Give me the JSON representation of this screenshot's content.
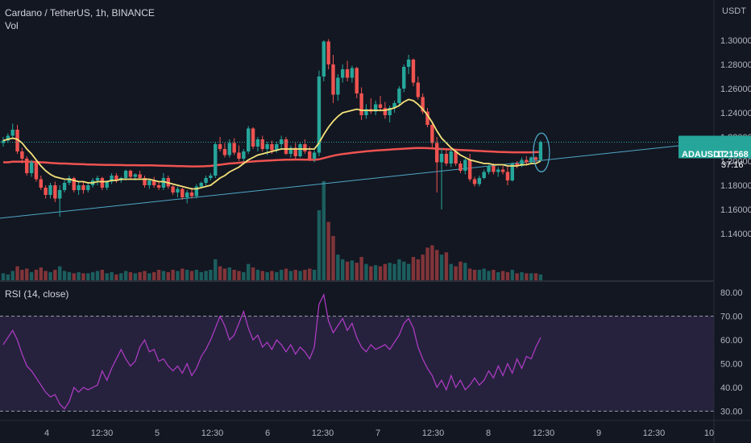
{
  "header": {
    "symbol_line": "Cardano / TetherUS, 1h, BINANCE",
    "volume_label": "Vol",
    "rsi_label": "RSI (14, close)"
  },
  "price_axis": {
    "currency": "USDT",
    "ticks": [
      "1.30000",
      "1.28000",
      "1.26000",
      "1.24000",
      "1.22000",
      "1.20000",
      "1.18000",
      "1.16000",
      "1.14000"
    ],
    "last_price_ticker": "ADAUSDT",
    "last_price": "1.21568",
    "countdown": "37:16"
  },
  "rsi_axis": {
    "ticks": [
      "80.00",
      "70.00",
      "60.00",
      "50.00",
      "40.00",
      "30.00"
    ]
  },
  "time_axis": {
    "ticks": [
      "4",
      "12:30",
      "5",
      "12:30",
      "6",
      "12:30",
      "7",
      "12:30",
      "8",
      "12:30",
      "9",
      "12:30",
      "10"
    ]
  },
  "colors": {
    "background": "#131722",
    "up": "#26a69a",
    "down": "#ef5350",
    "ma_fast": "#f5e27a",
    "ma_slow": "#ef5350",
    "trendline": "#4fa8c7",
    "rsi_line": "#b43cc8",
    "rsi_band": "#7e57c2"
  },
  "chart_data": [
    {
      "type": "candlestick",
      "title": "Cardano / TetherUS, 1h, BINANCE",
      "ylabel": "USDT",
      "ylim": [
        1.13,
        1.32
      ],
      "x_ticks": [
        "4",
        "12:30",
        "5",
        "12:30",
        "6",
        "12:30",
        "7",
        "12:30",
        "8",
        "12:30",
        "9",
        "12:30",
        "10"
      ],
      "candles_ohlc": [
        [
          1.215,
          1.22,
          1.212,
          1.217
        ],
        [
          1.217,
          1.223,
          1.215,
          1.221
        ],
        [
          1.221,
          1.231,
          1.219,
          1.226
        ],
        [
          1.226,
          1.23,
          1.206,
          1.208
        ],
        [
          1.208,
          1.211,
          1.198,
          1.202
        ],
        [
          1.202,
          1.204,
          1.188,
          1.19
        ],
        [
          1.19,
          1.201,
          1.187,
          1.199
        ],
        [
          1.199,
          1.201,
          1.183,
          1.185
        ],
        [
          1.185,
          1.188,
          1.176,
          1.178
        ],
        [
          1.178,
          1.18,
          1.169,
          1.172
        ],
        [
          1.172,
          1.182,
          1.169,
          1.18
        ],
        [
          1.18,
          1.183,
          1.166,
          1.169
        ],
        [
          1.169,
          1.18,
          1.154,
          1.176
        ],
        [
          1.176,
          1.184,
          1.174,
          1.182
        ],
        [
          1.182,
          1.188,
          1.18,
          1.186
        ],
        [
          1.186,
          1.187,
          1.174,
          1.176
        ],
        [
          1.176,
          1.183,
          1.172,
          1.18
        ],
        [
          1.18,
          1.183,
          1.173,
          1.176
        ],
        [
          1.176,
          1.182,
          1.174,
          1.18
        ],
        [
          1.18,
          1.186,
          1.178,
          1.184
        ],
        [
          1.184,
          1.188,
          1.18,
          1.186
        ],
        [
          1.186,
          1.187,
          1.176,
          1.178
        ],
        [
          1.178,
          1.184,
          1.176,
          1.183
        ],
        [
          1.183,
          1.19,
          1.181,
          1.188
        ],
        [
          1.188,
          1.19,
          1.182,
          1.184
        ],
        [
          1.184,
          1.187,
          1.182,
          1.186
        ],
        [
          1.186,
          1.193,
          1.184,
          1.192
        ],
        [
          1.192,
          1.193,
          1.185,
          1.187
        ],
        [
          1.187,
          1.19,
          1.184,
          1.189
        ],
        [
          1.189,
          1.192,
          1.185,
          1.186
        ],
        [
          1.186,
          1.188,
          1.178,
          1.18
        ],
        [
          1.18,
          1.185,
          1.177,
          1.184
        ],
        [
          1.184,
          1.187,
          1.178,
          1.18
        ],
        [
          1.18,
          1.183,
          1.176,
          1.178
        ],
        [
          1.178,
          1.19,
          1.176,
          1.186
        ],
        [
          1.186,
          1.188,
          1.177,
          1.179
        ],
        [
          1.179,
          1.18,
          1.172,
          1.174
        ],
        [
          1.174,
          1.179,
          1.17,
          1.177
        ],
        [
          1.177,
          1.178,
          1.168,
          1.17
        ],
        [
          1.17,
          1.176,
          1.165,
          1.174
        ],
        [
          1.174,
          1.178,
          1.169,
          1.171
        ],
        [
          1.171,
          1.181,
          1.169,
          1.179
        ],
        [
          1.179,
          1.183,
          1.178,
          1.182
        ],
        [
          1.182,
          1.188,
          1.18,
          1.186
        ],
        [
          1.186,
          1.19,
          1.184,
          1.188
        ],
        [
          1.188,
          1.216,
          1.186,
          1.214
        ],
        [
          1.214,
          1.22,
          1.208,
          1.21
        ],
        [
          1.21,
          1.215,
          1.203,
          1.205
        ],
        [
          1.205,
          1.218,
          1.203,
          1.215
        ],
        [
          1.215,
          1.219,
          1.205,
          1.207
        ],
        [
          1.207,
          1.213,
          1.2,
          1.202
        ],
        [
          1.202,
          1.21,
          1.2,
          1.208
        ],
        [
          1.208,
          1.229,
          1.206,
          1.227
        ],
        [
          1.227,
          1.228,
          1.21,
          1.212
        ],
        [
          1.212,
          1.22,
          1.208,
          1.218
        ],
        [
          1.218,
          1.221,
          1.208,
          1.21
        ],
        [
          1.21,
          1.216,
          1.205,
          1.214
        ],
        [
          1.214,
          1.217,
          1.206,
          1.209
        ],
        [
          1.209,
          1.216,
          1.207,
          1.214
        ],
        [
          1.214,
          1.221,
          1.21,
          1.218
        ],
        [
          1.218,
          1.22,
          1.205,
          1.206
        ],
        [
          1.206,
          1.213,
          1.203,
          1.211
        ],
        [
          1.211,
          1.215,
          1.201,
          1.204
        ],
        [
          1.204,
          1.215,
          1.203,
          1.214
        ],
        [
          1.214,
          1.218,
          1.206,
          1.208
        ],
        [
          1.208,
          1.212,
          1.2,
          1.202
        ],
        [
          1.202,
          1.209,
          1.199,
          1.207
        ],
        [
          1.207,
          1.275,
          1.204,
          1.27
        ],
        [
          1.27,
          1.3,
          1.266,
          1.299
        ],
        [
          1.299,
          1.301,
          1.276,
          1.28
        ],
        [
          1.28,
          1.288,
          1.248,
          1.255
        ],
        [
          1.255,
          1.272,
          1.25,
          1.269
        ],
        [
          1.269,
          1.28,
          1.265,
          1.276
        ],
        [
          1.276,
          1.283,
          1.266,
          1.269
        ],
        [
          1.269,
          1.279,
          1.265,
          1.277
        ],
        [
          1.277,
          1.278,
          1.252,
          1.256
        ],
        [
          1.256,
          1.261,
          1.234,
          1.238
        ],
        [
          1.238,
          1.247,
          1.235,
          1.243
        ],
        [
          1.243,
          1.252,
          1.239,
          1.241
        ],
        [
          1.241,
          1.25,
          1.238,
          1.247
        ],
        [
          1.247,
          1.254,
          1.241,
          1.244
        ],
        [
          1.244,
          1.249,
          1.235,
          1.238
        ],
        [
          1.238,
          1.246,
          1.232,
          1.244
        ],
        [
          1.244,
          1.25,
          1.24,
          1.248
        ],
        [
          1.248,
          1.262,
          1.245,
          1.26
        ],
        [
          1.26,
          1.28,
          1.257,
          1.278
        ],
        [
          1.278,
          1.288,
          1.272,
          1.284
        ],
        [
          1.284,
          1.285,
          1.262,
          1.265
        ],
        [
          1.265,
          1.27,
          1.251,
          1.253
        ],
        [
          1.253,
          1.256,
          1.239,
          1.241
        ],
        [
          1.241,
          1.244,
          1.228,
          1.23
        ],
        [
          1.23,
          1.233,
          1.211,
          1.215
        ],
        [
          1.215,
          1.22,
          1.174,
          1.199
        ],
        [
          1.199,
          1.211,
          1.16,
          1.206
        ],
        [
          1.206,
          1.209,
          1.196,
          1.198
        ],
        [
          1.198,
          1.21,
          1.195,
          1.208
        ],
        [
          1.208,
          1.21,
          1.196,
          1.198
        ],
        [
          1.198,
          1.2,
          1.19,
          1.192
        ],
        [
          1.192,
          1.202,
          1.189,
          1.201
        ],
        [
          1.201,
          1.206,
          1.183,
          1.185
        ],
        [
          1.185,
          1.187,
          1.179,
          1.181
        ],
        [
          1.181,
          1.188,
          1.179,
          1.186
        ],
        [
          1.186,
          1.193,
          1.185,
          1.191
        ],
        [
          1.191,
          1.197,
          1.189,
          1.196
        ],
        [
          1.196,
          1.198,
          1.189,
          1.191
        ],
        [
          1.191,
          1.195,
          1.187,
          1.193
        ],
        [
          1.193,
          1.196,
          1.189,
          1.191
        ],
        [
          1.191,
          1.196,
          1.18,
          1.184
        ],
        [
          1.184,
          1.199,
          1.183,
          1.198
        ],
        [
          1.198,
          1.2,
          1.194,
          1.196
        ],
        [
          1.196,
          1.203,
          1.195,
          1.201
        ],
        [
          1.201,
          1.204,
          1.197,
          1.199
        ],
        [
          1.199,
          1.204,
          1.198,
          1.203
        ],
        [
          1.203,
          1.204,
          1.199,
          1.201
        ],
        [
          1.201,
          1.217,
          1.2,
          1.2157
        ]
      ],
      "volume": [
        6,
        5,
        8,
        12,
        9,
        10,
        7,
        9,
        11,
        8,
        7,
        9,
        12,
        8,
        7,
        6,
        7,
        6,
        6,
        7,
        8,
        9,
        6,
        7,
        5,
        6,
        8,
        7,
        6,
        7,
        8,
        6,
        7,
        9,
        8,
        7,
        9,
        8,
        10,
        9,
        8,
        9,
        7,
        8,
        9,
        18,
        12,
        10,
        11,
        9,
        8,
        7,
        14,
        11,
        9,
        8,
        7,
        8,
        7,
        9,
        10,
        8,
        9,
        8,
        9,
        10,
        9,
        60,
        85,
        50,
        38,
        22,
        18,
        16,
        17,
        15,
        20,
        14,
        12,
        13,
        12,
        14,
        15,
        14,
        18,
        16,
        14,
        20,
        18,
        22,
        28,
        30,
        26,
        22,
        24,
        14,
        12,
        16,
        15,
        10,
        9,
        9,
        10,
        8,
        9,
        7,
        8,
        7,
        9,
        6,
        7,
        6,
        6,
        6,
        5
      ],
      "ma_fast": [
        1.217,
        1.218,
        1.219,
        1.218,
        1.215,
        1.21,
        1.206,
        1.201,
        1.196,
        1.192,
        1.189,
        1.187,
        1.186,
        1.185,
        1.185,
        1.184,
        1.183,
        1.183,
        1.182,
        1.182,
        1.183,
        1.183,
        1.183,
        1.184,
        1.184,
        1.185,
        1.185,
        1.185,
        1.185,
        1.185,
        1.185,
        1.185,
        1.184,
        1.183,
        1.183,
        1.182,
        1.181,
        1.18,
        1.179,
        1.178,
        1.177,
        1.177,
        1.178,
        1.179,
        1.18,
        1.183,
        1.186,
        1.188,
        1.191,
        1.193,
        1.195,
        1.198,
        1.201,
        1.203,
        1.205,
        1.206,
        1.207,
        1.208,
        1.209,
        1.21,
        1.21,
        1.21,
        1.21,
        1.21,
        1.21,
        1.21,
        1.21,
        1.215,
        1.222,
        1.228,
        1.233,
        1.237,
        1.24,
        1.241,
        1.242,
        1.243,
        1.242,
        1.242,
        1.242,
        1.242,
        1.242,
        1.242,
        1.243,
        1.244,
        1.246,
        1.249,
        1.251,
        1.25,
        1.247,
        1.243,
        1.238,
        1.232,
        1.225,
        1.219,
        1.215,
        1.211,
        1.208,
        1.205,
        1.203,
        1.201,
        1.2,
        1.199,
        1.198,
        1.198,
        1.197,
        1.197,
        1.197,
        1.196,
        1.196,
        1.196,
        1.197,
        1.197,
        1.198,
        1.198,
        1.2
      ],
      "ma_slow": [
        1.199,
        1.199,
        1.1995,
        1.1995,
        1.1995,
        1.1995,
        1.1995,
        1.1993,
        1.199,
        1.1988,
        1.1985,
        1.1983,
        1.198,
        1.198,
        1.1978,
        1.1976,
        1.1975,
        1.1974,
        1.1972,
        1.1971,
        1.197,
        1.1969,
        1.1968,
        1.1968,
        1.1967,
        1.1967,
        1.1966,
        1.1966,
        1.1966,
        1.1965,
        1.1965,
        1.1965,
        1.1964,
        1.1963,
        1.1962,
        1.1961,
        1.196,
        1.1959,
        1.1958,
        1.1957,
        1.1956,
        1.1956,
        1.1957,
        1.1958,
        1.196,
        1.1965,
        1.197,
        1.1975,
        1.198,
        1.1983,
        1.1986,
        1.199,
        1.1994,
        1.1997,
        1.2,
        1.2002,
        1.2004,
        1.2006,
        1.2008,
        1.201,
        1.2011,
        1.2012,
        1.2013,
        1.2013,
        1.2012,
        1.2011,
        1.201,
        1.2015,
        1.2025,
        1.2035,
        1.2045,
        1.2052,
        1.2058,
        1.2063,
        1.2068,
        1.2073,
        1.2077,
        1.2081,
        1.2084,
        1.2087,
        1.209,
        1.2093,
        1.2095,
        1.2098,
        1.21,
        1.2103,
        1.2105,
        1.2107,
        1.2108,
        1.2108,
        1.2107,
        1.2105,
        1.2102,
        1.21,
        1.2098,
        1.2096,
        1.2094,
        1.2092,
        1.209,
        1.2088,
        1.2086,
        1.2084,
        1.2082,
        1.208,
        1.2078,
        1.2076,
        1.2075,
        1.2074,
        1.2073,
        1.2073,
        1.2073,
        1.2073,
        1.2073,
        1.2074,
        1.2075
      ],
      "trendline": [
        [
          0,
          1.153
        ],
        [
          114,
          1.2005
        ]
      ],
      "annotation": "ellipse around last candle"
    },
    {
      "type": "line",
      "title": "RSI (14, close)",
      "ylim": [
        28,
        80
      ],
      "bands": [
        30,
        70
      ],
      "values": [
        58,
        61,
        64,
        60,
        54,
        49,
        47,
        44,
        41,
        38,
        36,
        37,
        33,
        31,
        34,
        40,
        38,
        40,
        39,
        40,
        41,
        47,
        43,
        48,
        52,
        56,
        52,
        49,
        51,
        57,
        60,
        55,
        56,
        51,
        52,
        49,
        47,
        49,
        46,
        50,
        45,
        48,
        53,
        56,
        60,
        65,
        70,
        66,
        60,
        62,
        67,
        72,
        65,
        60,
        62,
        57,
        59,
        56,
        60,
        58,
        55,
        58,
        54,
        57,
        55,
        52,
        57,
        75,
        79,
        68,
        63,
        66,
        69,
        64,
        67,
        61,
        57,
        55,
        58,
        56,
        57,
        58,
        56,
        59,
        62,
        67,
        69,
        65,
        57,
        52,
        48,
        45,
        40,
        43,
        39,
        45,
        40,
        43,
        39,
        41,
        44,
        41,
        43,
        47,
        44,
        49,
        45,
        50,
        46,
        52,
        48,
        53,
        52,
        57,
        61
      ]
    }
  ]
}
